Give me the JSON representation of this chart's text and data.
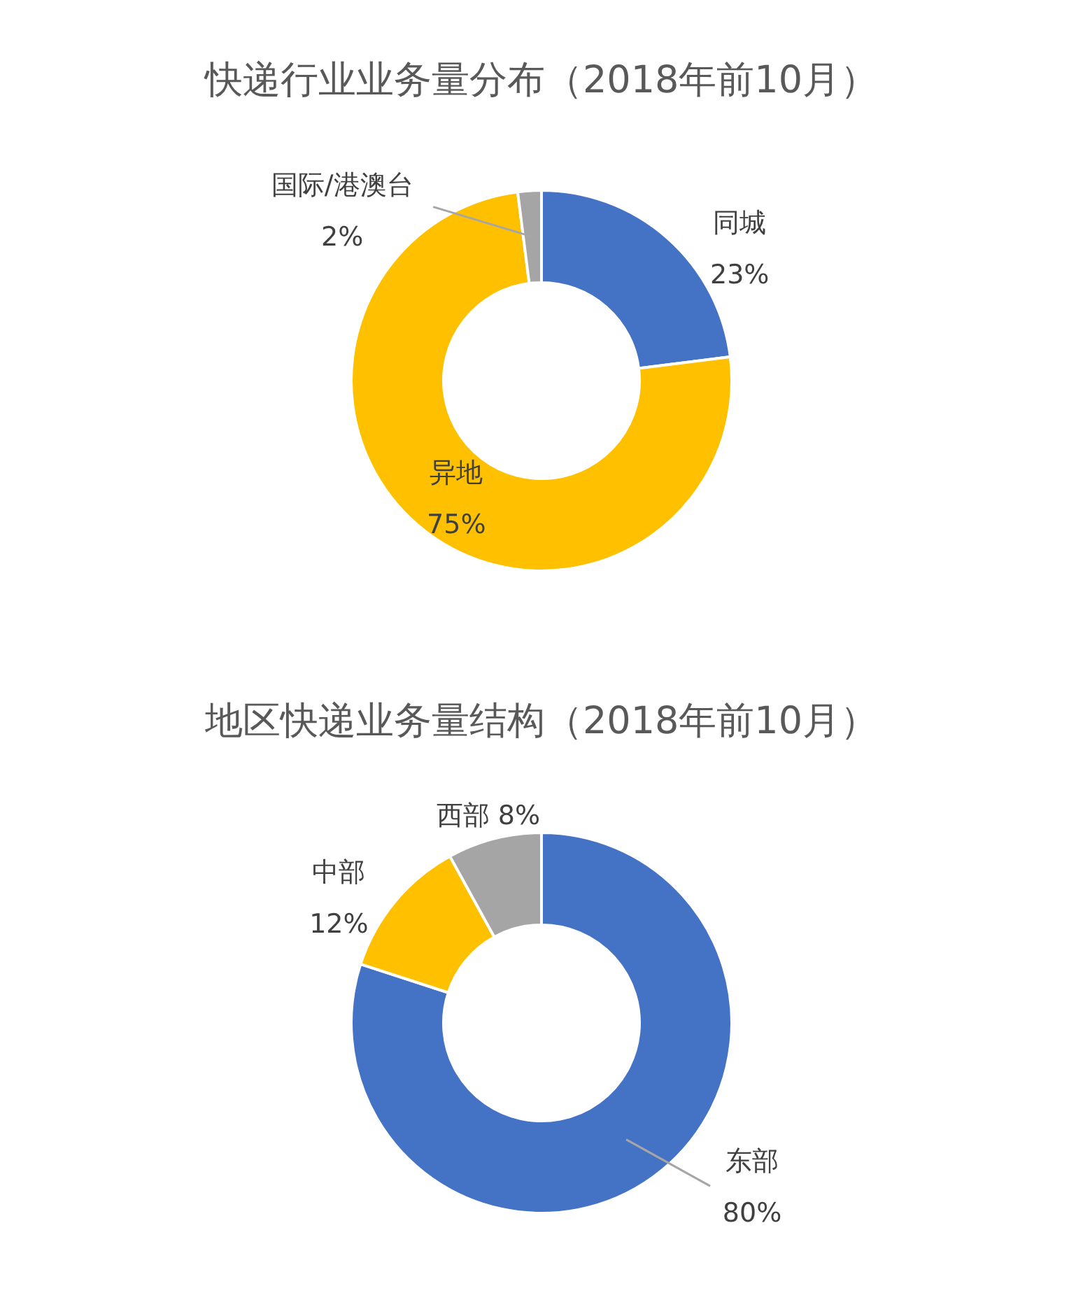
{
  "chart_data": [
    {
      "type": "donut",
      "title": "快递行业业务量分布（2018年前10月）",
      "categories": [
        "同城",
        "异地",
        "国际/港澳台"
      ],
      "values": [
        23,
        75,
        2
      ],
      "value_labels": [
        "23%",
        "75%",
        "2%"
      ],
      "colors": [
        "#4472c4",
        "#ffc000",
        "#a5a5a5"
      ]
    },
    {
      "type": "donut",
      "title": "地区快递业务量结构（2018年前10月）",
      "categories": [
        "东部",
        "中部",
        "西部"
      ],
      "values": [
        80,
        12,
        8
      ],
      "value_labels": [
        "80%",
        "12%",
        "8%"
      ],
      "colors": [
        "#4472c4",
        "#ffc000",
        "#a5a5a5"
      ]
    }
  ]
}
